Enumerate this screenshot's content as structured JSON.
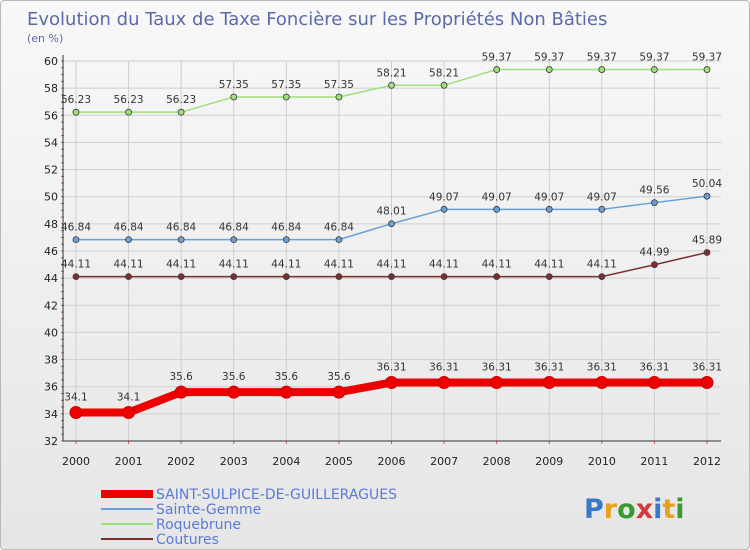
{
  "chart_data": {
    "type": "line",
    "title": "Evolution du Taux de Taxe Foncière sur les Propriétés Non Bâties",
    "ylabel": "(en %)",
    "xlabel": "",
    "ylim": [
      32,
      60
    ],
    "yticks": [
      32,
      34,
      36,
      38,
      40,
      42,
      44,
      46,
      48,
      50,
      52,
      54,
      56,
      58,
      60
    ],
    "x": [
      "2000",
      "2001",
      "2002",
      "2003",
      "2004",
      "2005",
      "2006",
      "2007",
      "2008",
      "2009",
      "2010",
      "2011",
      "2012"
    ],
    "grid": true,
    "legend_position": "bottom-left",
    "series": [
      {
        "name": "SAINT-SULPICE-DE-GUILLERAGUES",
        "color": "#ee0000",
        "values": [
          34.1,
          34.1,
          35.6,
          35.6,
          35.6,
          35.6,
          36.31,
          36.31,
          36.31,
          36.31,
          36.31,
          36.31,
          36.31
        ],
        "labels": [
          "34.1",
          "34.1",
          "35.6",
          "35.6",
          "35.6",
          "35.6",
          "36.31",
          "36.31",
          "36.31",
          "36.31",
          "36.31",
          "36.31",
          "36.31"
        ]
      },
      {
        "name": "Sainte-Gemme",
        "color": "#6aa0d8",
        "values": [
          46.84,
          46.84,
          46.84,
          46.84,
          46.84,
          46.84,
          48.01,
          49.07,
          49.07,
          49.07,
          49.07,
          49.56,
          50.04
        ],
        "labels": [
          "46.84",
          "46.84",
          "46.84",
          "46.84",
          "46.84",
          "46.84",
          "48.01",
          "49.07",
          "49.07",
          "49.07",
          "49.07",
          "49.56",
          "50.04"
        ]
      },
      {
        "name": "Roquebrune",
        "color": "#9ee07a",
        "values": [
          56.23,
          56.23,
          56.23,
          57.35,
          57.35,
          57.35,
          58.21,
          58.21,
          59.37,
          59.37,
          59.37,
          59.37,
          59.37
        ],
        "labels": [
          "56.23",
          "56.23",
          "56.23",
          "57.35",
          "57.35",
          "57.35",
          "58.21",
          "58.21",
          "59.37",
          "59.37",
          "59.37",
          "59.37",
          "59.37"
        ]
      },
      {
        "name": "Coutures",
        "color": "#7a3030",
        "values": [
          44.11,
          44.11,
          44.11,
          44.11,
          44.11,
          44.11,
          44.11,
          44.11,
          44.11,
          44.11,
          44.11,
          44.99,
          45.89
        ],
        "labels": [
          "44.11",
          "44.11",
          "44.11",
          "44.11",
          "44.11",
          "44.11",
          "44.11",
          "44.11",
          "44.11",
          "44.11",
          "44.11",
          "44.99",
          "45.89"
        ]
      }
    ]
  },
  "brand": {
    "logo": "Proxiti"
  }
}
